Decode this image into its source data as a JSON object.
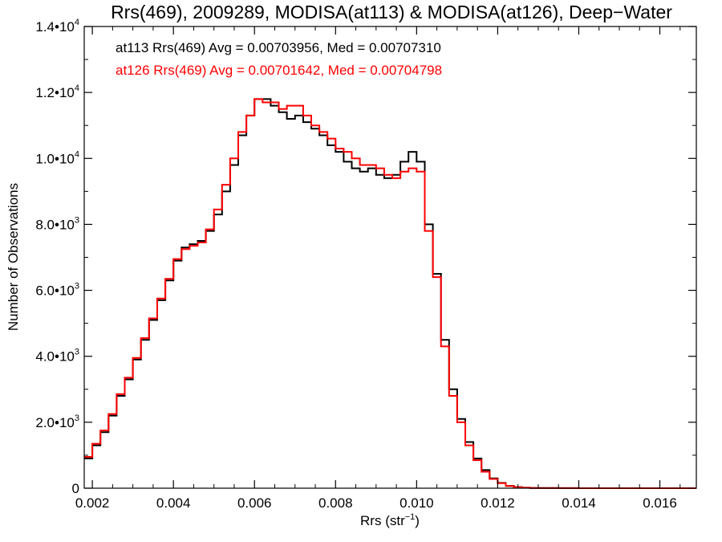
{
  "chart_data": {
    "type": "line",
    "title": "Rrs(469), 2009289, MODISA(at113) & MODISA(at126), Deep−Water",
    "xlabel": "Rrs (str",
    "xlabel_sup": "−1",
    "xlabel_end": ")",
    "ylabel": "Number of Observations",
    "xlim": [
      0.0018,
      0.0169
    ],
    "ylim": [
      0,
      14000
    ],
    "x_ticks": [
      {
        "value": 0.002,
        "label": "0.002"
      },
      {
        "value": 0.004,
        "label": "0.004"
      },
      {
        "value": 0.006,
        "label": "0.006"
      },
      {
        "value": 0.008,
        "label": "0.008"
      },
      {
        "value": 0.01,
        "label": "0.010"
      },
      {
        "value": 0.012,
        "label": "0.012"
      },
      {
        "value": 0.014,
        "label": "0.014"
      },
      {
        "value": 0.016,
        "label": "0.016"
      }
    ],
    "y_ticks": [
      {
        "value": 0,
        "mantissa": "0",
        "exp": ""
      },
      {
        "value": 2000,
        "mantissa": "2.0•10",
        "exp": "3"
      },
      {
        "value": 4000,
        "mantissa": "4.0•10",
        "exp": "3"
      },
      {
        "value": 6000,
        "mantissa": "6.0•10",
        "exp": "3"
      },
      {
        "value": 8000,
        "mantissa": "8.0•10",
        "exp": "3"
      },
      {
        "value": 10000,
        "mantissa": "1.0•10",
        "exp": "4"
      },
      {
        "value": 12000,
        "mantissa": "1.2•10",
        "exp": "4"
      },
      {
        "value": 14000,
        "mantissa": "1.4•10",
        "exp": "4"
      }
    ],
    "annotations": [
      {
        "text": "at113 Rrs(469) Avg = 0.00703956, Med = 0.00707310",
        "color": "#000000"
      },
      {
        "text": "at126 Rrs(469) Avg = 0.00701642, Med = 0.00704798",
        "color": "#ff0000"
      }
    ],
    "series": [
      {
        "color": "#000000",
        "x": [
          0.0018,
          0.002,
          0.0022,
          0.0024,
          0.0026,
          0.0028,
          0.003,
          0.0032,
          0.0034,
          0.0036,
          0.0038,
          0.004,
          0.0042,
          0.0044,
          0.0046,
          0.0048,
          0.005,
          0.0052,
          0.0054,
          0.0056,
          0.0058,
          0.006,
          0.0062,
          0.0064,
          0.0066,
          0.0068,
          0.007,
          0.0072,
          0.0074,
          0.0076,
          0.0078,
          0.008,
          0.0082,
          0.0084,
          0.0086,
          0.0088,
          0.009,
          0.0092,
          0.0094,
          0.0096,
          0.0098,
          0.01,
          0.0102,
          0.0104,
          0.0106,
          0.0108,
          0.011,
          0.0112,
          0.0114,
          0.0116,
          0.0118,
          0.012,
          0.0122,
          0.0124,
          0.0126,
          0.0128,
          0.013,
          0.0135,
          0.014,
          0.015,
          0.016,
          0.0169
        ],
        "y": [
          900,
          1300,
          1700,
          2200,
          2800,
          3300,
          3900,
          4500,
          5100,
          5700,
          6300,
          6900,
          7300,
          7400,
          7500,
          7800,
          8300,
          9000,
          9800,
          10700,
          11300,
          11800,
          11800,
          11600,
          11400,
          11200,
          11300,
          11100,
          10900,
          10700,
          10400,
          10200,
          9900,
          9700,
          9600,
          9700,
          9500,
          9400,
          9500,
          9900,
          10200,
          9900,
          8000,
          6500,
          4500,
          3000,
          2100,
          1400,
          900,
          550,
          300,
          160,
          70,
          35,
          15,
          8,
          4,
          2,
          1,
          0,
          0,
          0
        ]
      },
      {
        "color": "#ff0000",
        "x": [
          0.0018,
          0.002,
          0.0022,
          0.0024,
          0.0026,
          0.0028,
          0.003,
          0.0032,
          0.0034,
          0.0036,
          0.0038,
          0.004,
          0.0042,
          0.0044,
          0.0046,
          0.0048,
          0.005,
          0.0052,
          0.0054,
          0.0056,
          0.0058,
          0.006,
          0.0062,
          0.0064,
          0.0066,
          0.0068,
          0.007,
          0.0072,
          0.0074,
          0.0076,
          0.0078,
          0.008,
          0.0082,
          0.0084,
          0.0086,
          0.0088,
          0.009,
          0.0092,
          0.0094,
          0.0096,
          0.0098,
          0.01,
          0.0102,
          0.0104,
          0.0106,
          0.0108,
          0.011,
          0.0112,
          0.0114,
          0.0116,
          0.0118,
          0.012,
          0.0122,
          0.0124,
          0.0126,
          0.0128,
          0.013,
          0.0135,
          0.014,
          0.015,
          0.016,
          0.0169
        ],
        "y": [
          950,
          1350,
          1750,
          2250,
          2850,
          3350,
          3950,
          4550,
          5150,
          5750,
          6350,
          6950,
          7250,
          7350,
          7450,
          7850,
          8450,
          9200,
          10000,
          10800,
          11300,
          11800,
          11700,
          11700,
          11500,
          11600,
          11600,
          11300,
          11000,
          10800,
          10600,
          10300,
          10200,
          10000,
          9800,
          9800,
          9700,
          9500,
          9400,
          9600,
          9700,
          9600,
          7800,
          6400,
          4300,
          2800,
          2000,
          1300,
          850,
          500,
          280,
          150,
          65,
          30,
          14,
          7,
          3,
          2,
          1,
          0,
          0,
          0
        ]
      }
    ]
  }
}
